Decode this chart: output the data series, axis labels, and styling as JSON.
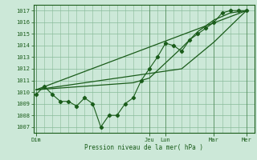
{
  "xlabel": "Pression niveau de la mer( hPa )",
  "bg_color": "#cce8d8",
  "grid_color": "#88bb99",
  "line_color": "#1a5c1a",
  "ylim": [
    1006.5,
    1017.5
  ],
  "yticks": [
    1007,
    1008,
    1009,
    1010,
    1011,
    1012,
    1013,
    1014,
    1015,
    1016,
    1017
  ],
  "day_labels": [
    "Dim",
    "",
    "",
    "",
    "Jeu",
    "Lun",
    "",
    "",
    "Mar",
    "",
    "Mer"
  ],
  "vline_positions": [
    0,
    84,
    96,
    132,
    156
  ],
  "vline_labels": [
    "Dim",
    "Jeu",
    "Lun",
    "Mar",
    "Mer"
  ],
  "xlim": [
    -2,
    162
  ],
  "series1_x": [
    0,
    6,
    12,
    18,
    24,
    30,
    36,
    42,
    48,
    54,
    60,
    66,
    72,
    78,
    84,
    90,
    96,
    102,
    108,
    114,
    120,
    126,
    132,
    138,
    144,
    150,
    156
  ],
  "series1_y": [
    1009.8,
    1010.5,
    1009.8,
    1009.2,
    1009.2,
    1008.8,
    1009.5,
    1009.0,
    1007.0,
    1008.0,
    1008.0,
    1009.0,
    1009.5,
    1011.0,
    1012.0,
    1013.0,
    1014.2,
    1014.0,
    1013.5,
    1014.5,
    1015.0,
    1015.5,
    1016.0,
    1016.8,
    1017.0,
    1017.0,
    1017.0
  ],
  "series2_x": [
    0,
    156
  ],
  "series2_y": [
    1010.2,
    1017.0
  ],
  "series3_x": [
    0,
    96,
    108,
    132,
    156
  ],
  "series3_y": [
    1010.2,
    1011.8,
    1012.0,
    1014.3,
    1017.0
  ],
  "series4_x": [
    0,
    72,
    84,
    96,
    108,
    120,
    132,
    144,
    156
  ],
  "series4_y": [
    1010.2,
    1010.8,
    1011.2,
    1012.5,
    1013.8,
    1015.2,
    1016.2,
    1016.8,
    1017.0
  ]
}
